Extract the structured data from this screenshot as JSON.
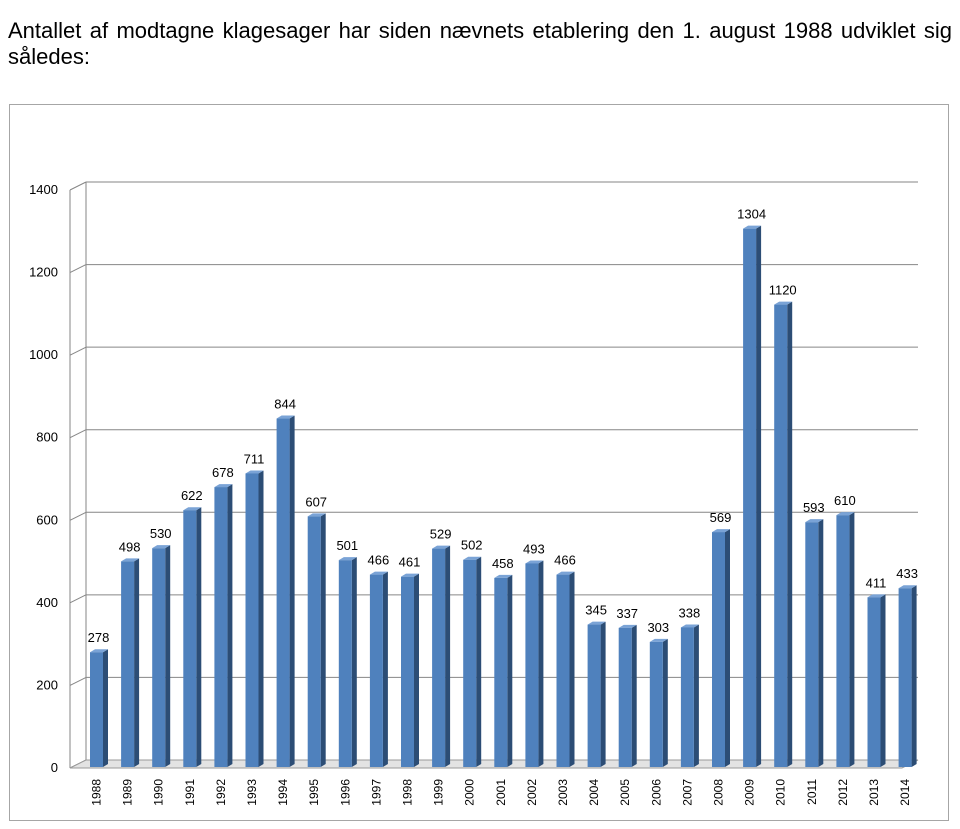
{
  "intro_text": "Antallet af modtagne klagesager har siden nævnets etablering den 1. august 1988 udviklet sig således:",
  "chart_data": {
    "type": "bar",
    "categories": [
      "1988",
      "1989",
      "1990",
      "1991",
      "1992",
      "1993",
      "1994",
      "1995",
      "1996",
      "1997",
      "1998",
      "1999",
      "2000",
      "2001",
      "2002",
      "2003",
      "2004",
      "2005",
      "2006",
      "2007",
      "2008",
      "2009",
      "2010",
      "2011",
      "2012",
      "2013",
      "2014"
    ],
    "values": [
      278,
      498,
      530,
      622,
      678,
      711,
      844,
      607,
      501,
      466,
      461,
      529,
      502,
      458,
      493,
      466,
      345,
      337,
      303,
      338,
      569,
      1304,
      1120,
      593,
      610,
      411,
      433
    ],
    "data_labels": [
      "278",
      "498",
      "530",
      "622",
      "678",
      "711",
      "844",
      "607",
      "501",
      "466",
      "461",
      "529",
      "502",
      "458",
      "493",
      "466",
      "345",
      "337",
      "303",
      "338",
      "569",
      "1304",
      "1120",
      "593",
      "610",
      "411",
      "433"
    ],
    "title": "",
    "xlabel": "",
    "ylabel": "",
    "ylim": [
      0,
      1400
    ],
    "yticks": [
      "0",
      "200",
      "400",
      "600",
      "800",
      "1000",
      "1200",
      "1400"
    ],
    "grid": true,
    "legend": "none",
    "bar_color": "#4f81bd",
    "bar_dark_color": "#2c4d75",
    "bar_light_color": "#7aa3d6"
  }
}
